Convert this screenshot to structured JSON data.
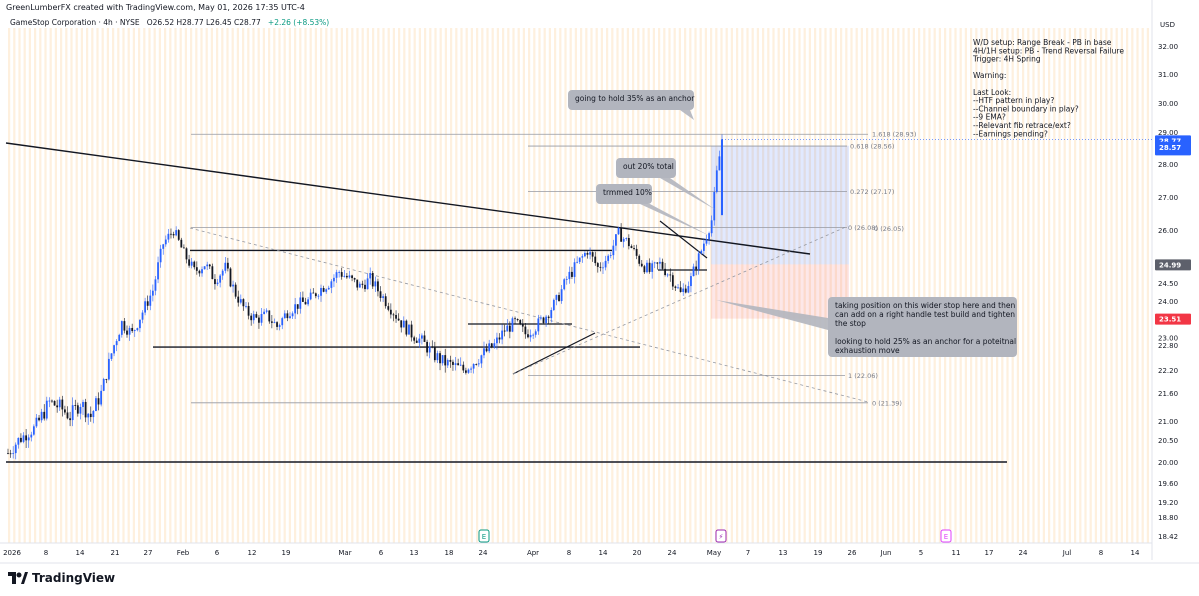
{
  "topline": "GreenLumberFX created with TradingView.com, May 01, 2026 17:35 UTC-4",
  "header": {
    "symbol": "GameStop Corporation · 4h · NYSE",
    "ohlc": "O26.52 H28.77 L26.45 C28.77",
    "change": "+2.26 (+8.53%)"
  },
  "currency": "USD",
  "price_badges": {
    "last": "28.77",
    "countdown": "02:24:11",
    "target": "28.57",
    "entry": "24.99",
    "stop": "23.51"
  },
  "notes": [
    "W/D setup: Range Break - PB in base",
    "4H/1H setup: PB - Trend Reversal Failure",
    "Trigger: 4H Spring",
    "",
    "Warning:",
    "",
    "Last Look:",
    "--HTF pattern in play?",
    "--Channel boundary in play?",
    "--9 EMA?",
    "--Relevant fib retrace/ext?",
    "--Earnings pending?"
  ],
  "callouts": {
    "anchor35": "going to hold 35% as an anchor",
    "out20": "out 20% total",
    "trimmed": "trmmed 10%",
    "position_lines": [
      "taking position on this wider stop here and then",
      "can add on a right handle test build and tighten",
      "the stop",
      "",
      "looking to hold 25% as an anchor for a poteitnal",
      "exhaustion move"
    ]
  },
  "fib_labels": {
    "ext1618": "1.618 (28.93)",
    "ext0618": "0.618 (28.56)",
    "ext0272": "0.272 (27.17)",
    "ext0": "0 (26.08)",
    "ext0b": "0 (26.05)",
    "ret1": "1 (22.06)",
    "ret0": "0 (21.39)"
  },
  "event_icons": {
    "earnings": "E",
    "dividend": "⚡"
  },
  "logo": "TradingView",
  "chart_data": {
    "type": "candlestick",
    "y_axis": {
      "ticks": [
        "32.00",
        "31.00",
        "30.00",
        "29.00",
        "28.00",
        "27.00",
        "26.00",
        "25.00",
        "24.50",
        "24.00",
        "23.50",
        "23.00",
        "22.80",
        "22.20",
        "21.60",
        "21.00",
        "20.50",
        "20.00",
        "19.60",
        "19.20",
        "18.80",
        "18.42"
      ],
      "scale": "log",
      "range": [
        18.3,
        32.6
      ]
    },
    "x_axis": {
      "ticks": [
        "2026",
        "8",
        "14",
        "21",
        "27",
        "Feb",
        "6",
        "12",
        "19",
        "Mar",
        "6",
        "13",
        "18",
        "24",
        "Apr",
        "8",
        "14",
        "20",
        "24",
        "May",
        "7",
        "13",
        "19",
        "26",
        "Jun",
        "5",
        "11",
        "17",
        "24",
        "Jul",
        "8",
        "14"
      ]
    },
    "price_path": [
      [
        0,
        20.2
      ],
      [
        2,
        20.5
      ],
      [
        5,
        20.8
      ],
      [
        8,
        21.4
      ],
      [
        10,
        21.3
      ],
      [
        12,
        21.1
      ],
      [
        14,
        21.4
      ],
      [
        16,
        21.1
      ],
      [
        18,
        21.6
      ],
      [
        20,
        22.6
      ],
      [
        22,
        23.4
      ],
      [
        24,
        23.1
      ],
      [
        26,
        23.7
      ],
      [
        28,
        24.3
      ],
      [
        30,
        25.6
      ],
      [
        32,
        26.0
      ],
      [
        34,
        25.3
      ],
      [
        36,
        24.8
      ],
      [
        38,
        25.0
      ],
      [
        40,
        24.6
      ],
      [
        42,
        24.9
      ],
      [
        44,
        24.2
      ],
      [
        46,
        23.7
      ],
      [
        48,
        23.5
      ],
      [
        50,
        23.6
      ],
      [
        52,
        23.3
      ],
      [
        54,
        23.7
      ],
      [
        56,
        23.9
      ],
      [
        58,
        24.0
      ],
      [
        60,
        24.3
      ],
      [
        62,
        24.5
      ],
      [
        64,
        24.8
      ],
      [
        66,
        24.6
      ],
      [
        68,
        24.4
      ],
      [
        70,
        24.6
      ],
      [
        72,
        24.2
      ],
      [
        74,
        23.8
      ],
      [
        76,
        23.4
      ],
      [
        78,
        23.1
      ],
      [
        80,
        22.9
      ],
      [
        82,
        22.6
      ],
      [
        84,
        22.4
      ],
      [
        86,
        22.3
      ],
      [
        88,
        22.2
      ],
      [
        90,
        22.4
      ],
      [
        92,
        22.6
      ],
      [
        94,
        22.8
      ],
      [
        96,
        23.2
      ],
      [
        98,
        23.4
      ],
      [
        100,
        23.1
      ],
      [
        102,
        23.3
      ],
      [
        104,
        23.6
      ],
      [
        106,
        24.0
      ],
      [
        108,
        24.6
      ],
      [
        110,
        25.0
      ],
      [
        112,
        25.4
      ],
      [
        114,
        24.9
      ],
      [
        116,
        25.2
      ],
      [
        118,
        25.9
      ],
      [
        120,
        25.6
      ],
      [
        122,
        25.1
      ],
      [
        124,
        24.8
      ],
      [
        126,
        25.0
      ],
      [
        128,
        24.7
      ],
      [
        130,
        24.2
      ],
      [
        132,
        24.6
      ],
      [
        134,
        25.4
      ],
      [
        136,
        26.3
      ],
      [
        137,
        27.7
      ],
      [
        138,
        28.77
      ]
    ],
    "levels": {
      "resistance_top": 25.4,
      "range_low": 22.75,
      "major_support": 20.0,
      "entry": 24.99,
      "stop": 23.51,
      "target": 28.57
    }
  }
}
